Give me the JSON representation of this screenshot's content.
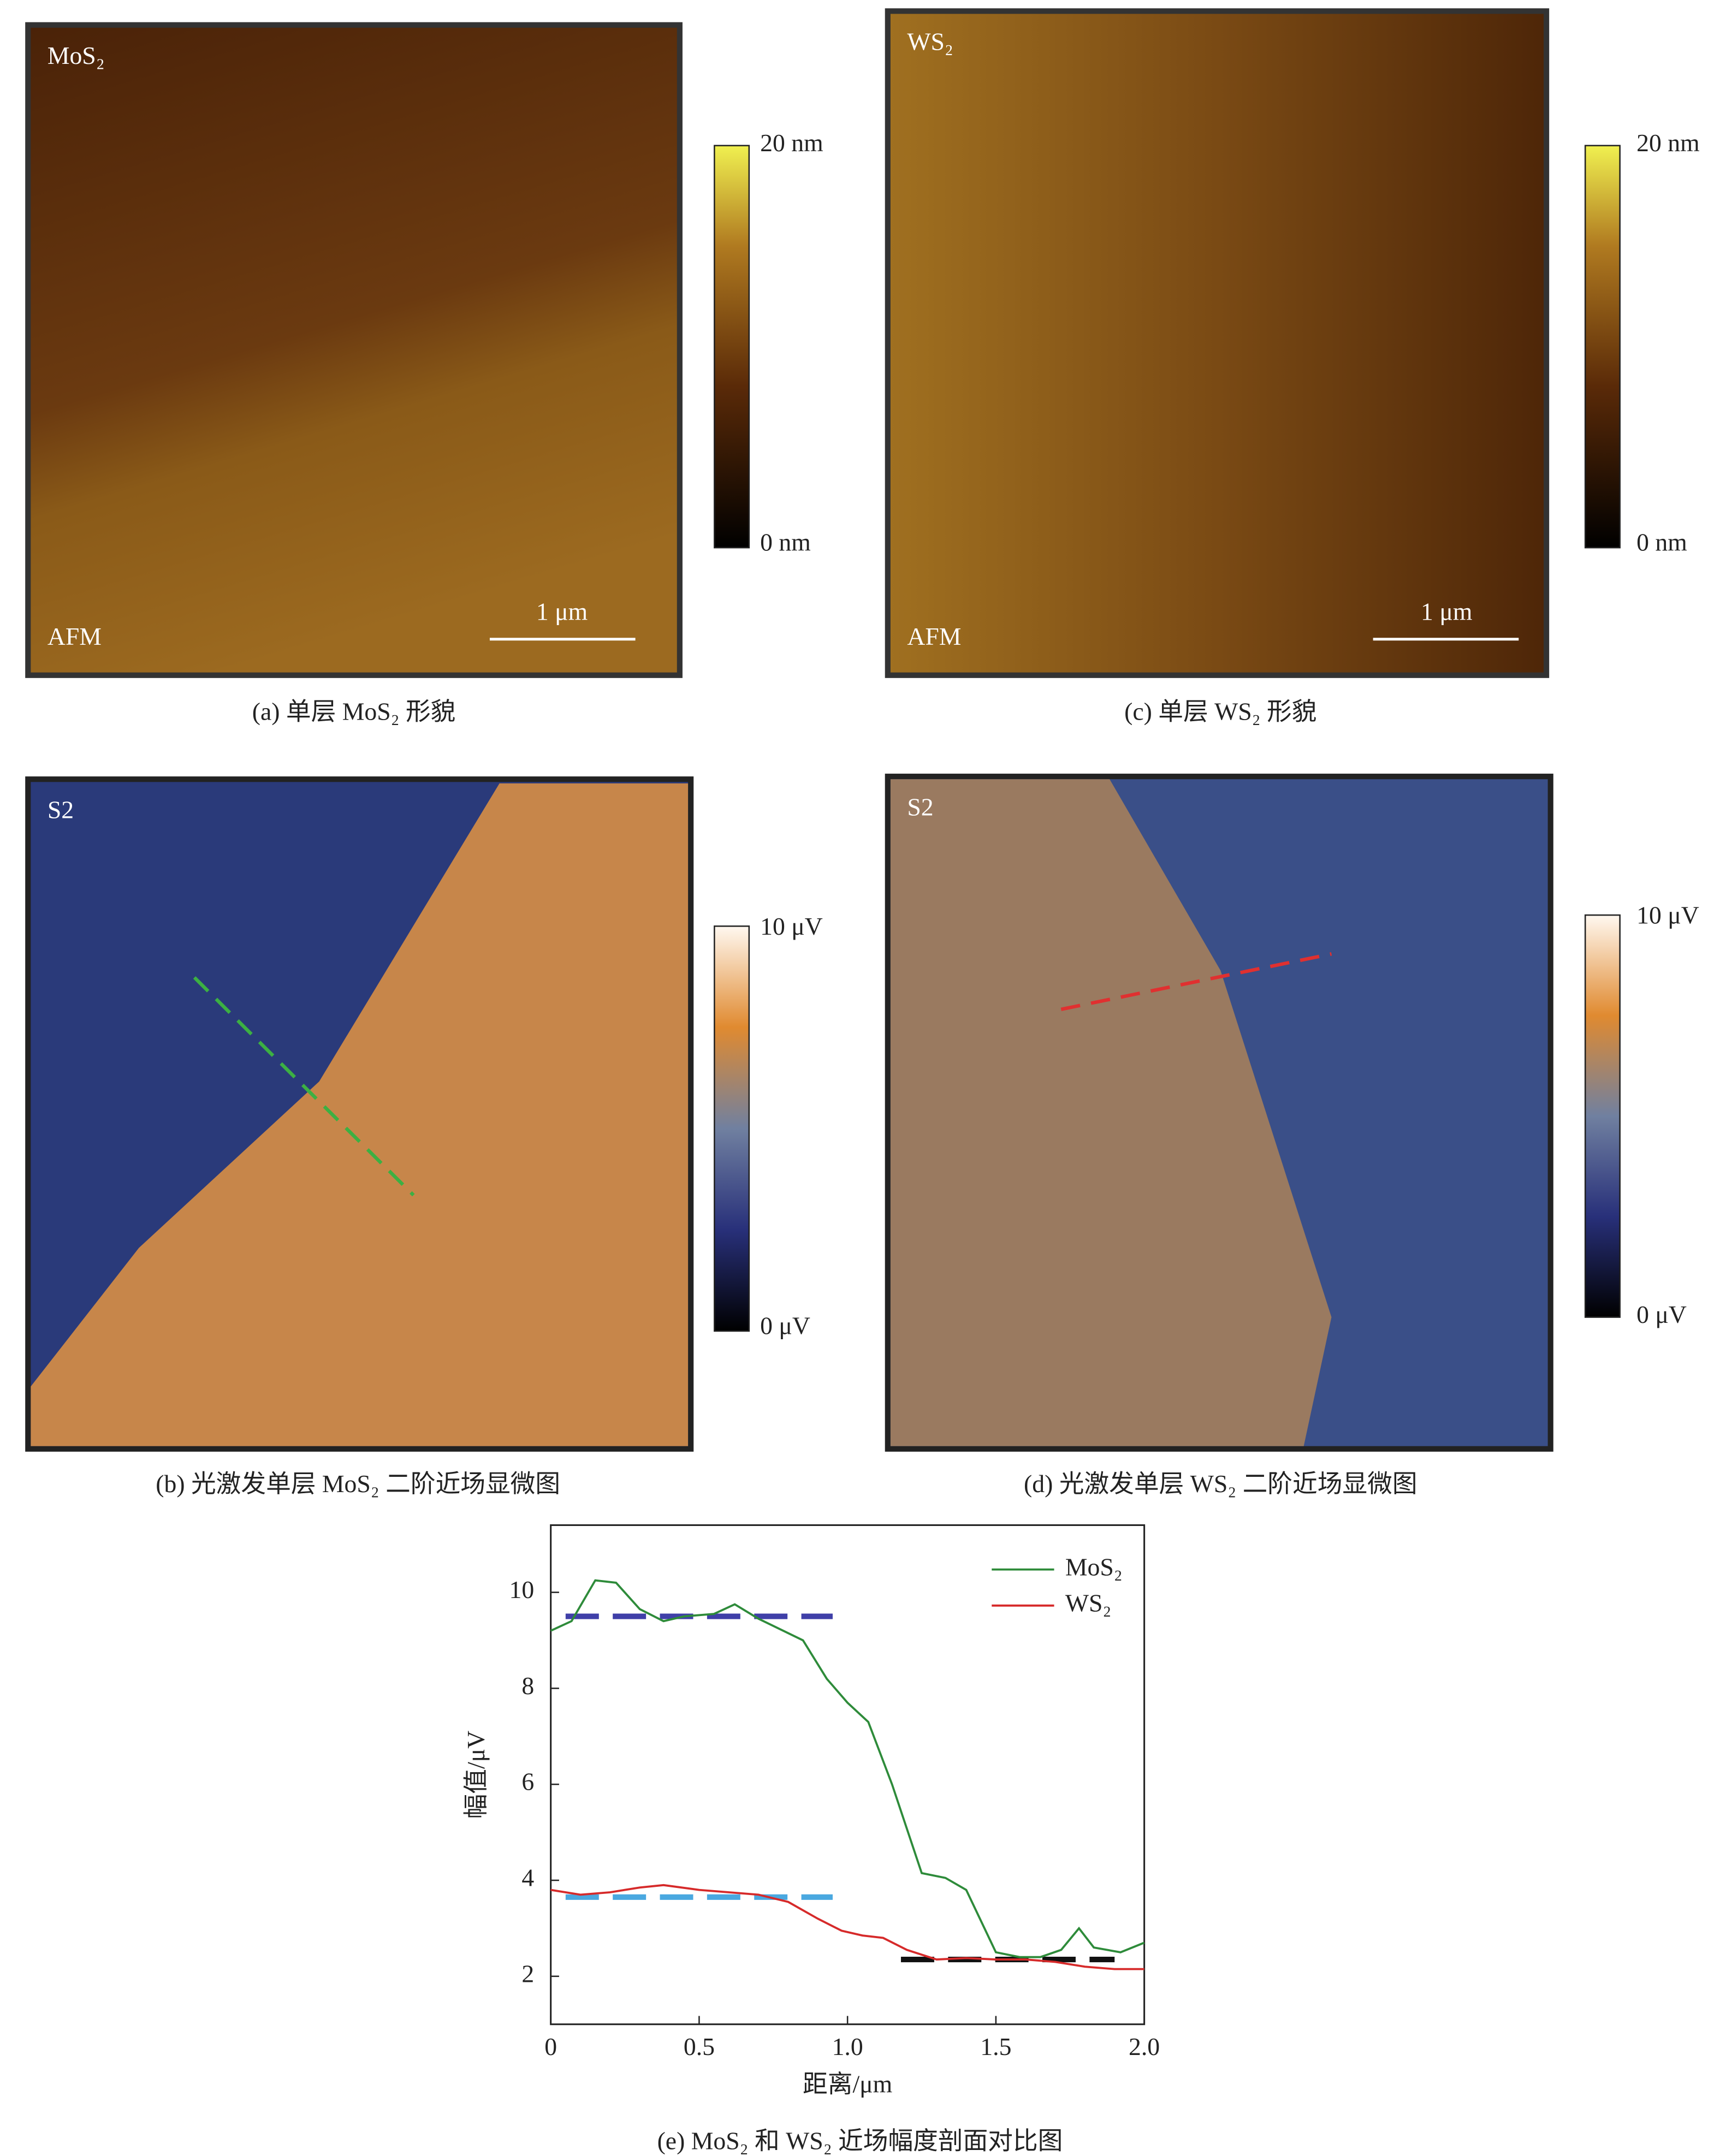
{
  "panels": [
    {
      "label": "MoS₂",
      "mode": "AFM",
      "scale_bar": "1 μm",
      "colorbar": [
        "20 nm",
        "0 nm"
      ],
      "caption": "(a) 单层 MoS₂ 形貌"
    },
    {
      "label": "WS₂",
      "mode": "AFM",
      "scale_bar": "1 μm",
      "colorbar": [
        "20 nm",
        "0 nm"
      ],
      "caption": "(c) 单层 WS₂ 形貌"
    },
    {
      "label": "S2",
      "colorbar": [
        "10 μV",
        "0 μV"
      ],
      "caption": "(b) 光激发单层 MoS₂ 二阶近场显微图"
    },
    {
      "label": "S2",
      "colorbar": [
        "10 μV",
        "0 μV"
      ],
      "caption": "(d) 光激发单层 WS₂ 二阶近场显微图"
    }
  ],
  "chart_data": {
    "type": "line",
    "caption": "(e) MoS₂ 和 WS₂ 近场幅度剖面对比图",
    "x_label": "距离/μm",
    "y_label": "幅值/μV",
    "xlim": [
      0,
      2
    ],
    "ylim": [
      1,
      11.4
    ],
    "xticks": [
      0,
      0.5,
      {
        "value": 1,
        "label": "1.0"
      },
      1.5,
      {
        "value": 2,
        "label": "2.0"
      }
    ],
    "yticks": [
      2,
      4,
      6,
      8,
      10
    ],
    "legend": "upper right",
    "series": [
      {
        "name": "MoS₂",
        "color": "#2e8b3a",
        "x": [
          0,
          0.07,
          0.15,
          0.22,
          0.3,
          0.38,
          0.45,
          0.55,
          0.62,
          0.7,
          0.85,
          0.93,
          1.0,
          1.07,
          1.15,
          1.25,
          1.33,
          1.4,
          1.5,
          1.58,
          1.65,
          1.72,
          1.78,
          1.83,
          1.92,
          2.0
        ],
        "values": [
          9.2,
          9.4,
          10.25,
          10.2,
          9.65,
          9.4,
          9.5,
          9.55,
          9.75,
          9.45,
          9.0,
          8.2,
          7.7,
          7.3,
          6.0,
          4.15,
          4.05,
          3.8,
          2.5,
          2.4,
          2.4,
          2.55,
          3.0,
          2.6,
          2.5,
          2.7
        ]
      },
      {
        "name": "WS₂",
        "color": "#d62a2a",
        "x": [
          0,
          0.1,
          0.2,
          0.3,
          0.38,
          0.5,
          0.6,
          0.7,
          0.8,
          0.9,
          0.98,
          1.05,
          1.12,
          1.2,
          1.3,
          1.4,
          1.5,
          1.6,
          1.7,
          1.8,
          1.9,
          2.0
        ],
        "values": [
          3.8,
          3.7,
          3.75,
          3.85,
          3.9,
          3.8,
          3.75,
          3.7,
          3.55,
          3.2,
          2.95,
          2.85,
          2.8,
          2.55,
          2.35,
          2.38,
          2.35,
          2.35,
          2.3,
          2.2,
          2.15,
          2.15
        ]
      }
    ],
    "reference_lines": [
      {
        "value": 9.5,
        "x": [
          0.05,
          0.95
        ],
        "color": "#3f3fa8"
      },
      {
        "value": 3.65,
        "x": [
          0.05,
          0.95
        ],
        "color": "#4aa8e0"
      },
      {
        "value": 2.35,
        "x": [
          1.18,
          1.9
        ],
        "color": "#111111"
      }
    ]
  }
}
